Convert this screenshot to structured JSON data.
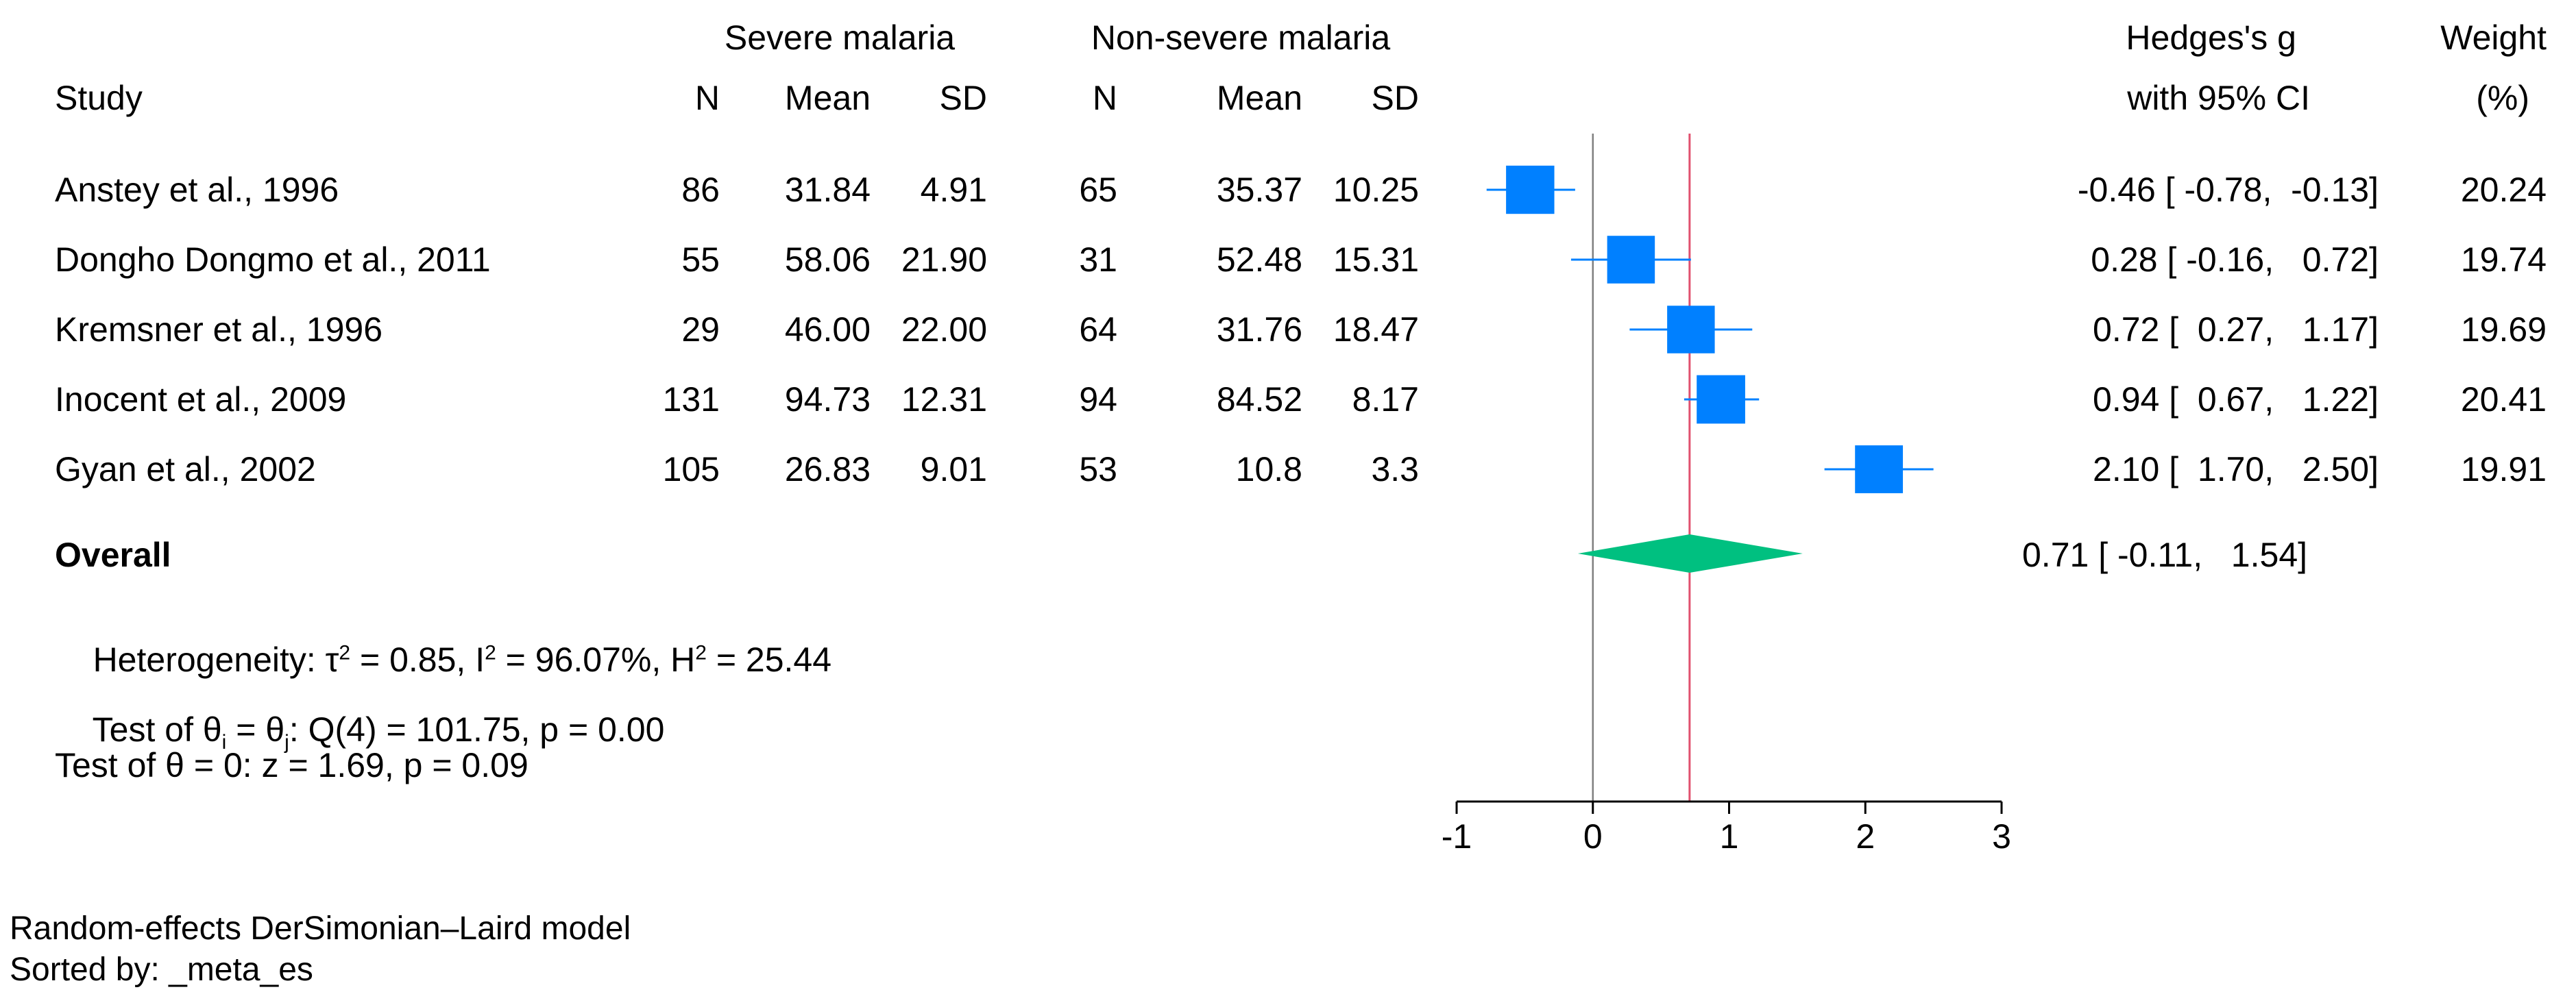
{
  "chart_data": {
    "type": "forest",
    "headers": {
      "study": "Study",
      "group1": "Severe malaria",
      "group2": "Non-severe malaria",
      "n": "N",
      "mean": "Mean",
      "sd": "SD",
      "effect_line1": "Hedges's g",
      "effect_line2": "with 95% CI",
      "weight_line1": "Weight",
      "weight_line2": "(%)"
    },
    "studies": [
      {
        "study": "Anstey et al., 1996",
        "n1": "86",
        "mean1": "31.84",
        "sd1": "4.91",
        "n2": "65",
        "mean2": "35.37",
        "sd2": "10.25",
        "g": -0.46,
        "lo": -0.78,
        "hi": -0.13,
        "ci_text": "-0.46 [ -0.78,  -0.13]",
        "weight": 20.24,
        "weight_text": "20.24"
      },
      {
        "study": "Dongho Dongmo et al., 2011",
        "n1": "55",
        "mean1": "58.06",
        "sd1": "21.90",
        "n2": "31",
        "mean2": "52.48",
        "sd2": "15.31",
        "g": 0.28,
        "lo": -0.16,
        "hi": 0.72,
        "ci_text": "0.28 [ -0.16,   0.72]",
        "weight": 19.74,
        "weight_text": "19.74"
      },
      {
        "study": "Kremsner et al., 1996",
        "n1": "29",
        "mean1": "46.00",
        "sd1": "22.00",
        "n2": "64",
        "mean2": "31.76",
        "sd2": "18.47",
        "g": 0.72,
        "lo": 0.27,
        "hi": 1.17,
        "ci_text": "0.72 [  0.27,   1.17]",
        "weight": 19.69,
        "weight_text": "19.69"
      },
      {
        "study": "Inocent et al., 2009",
        "n1": "131",
        "mean1": "94.73",
        "sd1": "12.31",
        "n2": "94",
        "mean2": "84.52",
        "sd2": "8.17",
        "g": 0.94,
        "lo": 0.67,
        "hi": 1.22,
        "ci_text": "0.94 [  0.67,   1.22]",
        "weight": 20.41,
        "weight_text": "20.41"
      },
      {
        "study": "Gyan et al., 2002",
        "n1": "105",
        "mean1": "26.83",
        "sd1": "9.01",
        "n2": "53",
        "mean2": "10.8",
        "sd2": "3.3",
        "g": 2.1,
        "lo": 1.7,
        "hi": 2.5,
        "ci_text": "2.10 [  1.70,   2.50]",
        "weight": 19.91,
        "weight_text": "19.91"
      }
    ],
    "overall": {
      "label": "Overall",
      "g": 0.71,
      "lo": -0.11,
      "hi": 1.54,
      "ci_text": "0.71 [ -0.11,   1.54]"
    },
    "stats": {
      "heterogeneity": {
        "prefix": "Heterogeneity: τ",
        "tau_sup": "2",
        "tau_val": " = 0.85, I",
        "i_sup": "2",
        "i_val": " = 96.07%, H",
        "h_sup": "2",
        "h_val": " = 25.44"
      },
      "test_theta": {
        "p1": "Test of θ",
        "s1": "i",
        "p2": " = θ",
        "s2": "j",
        "p3": ": Q(4) = 101.75, p = 0.00"
      },
      "test_zero": "Test of θ = 0: z = 1.69, p = 0.09"
    },
    "xaxis": {
      "min": -1,
      "max": 3,
      "ticks": [
        -1,
        0,
        1,
        2,
        3
      ],
      "null_line": 0
    },
    "colors": {
      "square": "#0080ff",
      "diamond": "#00c080",
      "overall_line": "#e0506e",
      "null_line": "#808080",
      "axis": "#000000"
    },
    "footnote": [
      "Random-effects DerSimonian–Laird model",
      "Sorted by: _meta_es"
    ]
  }
}
